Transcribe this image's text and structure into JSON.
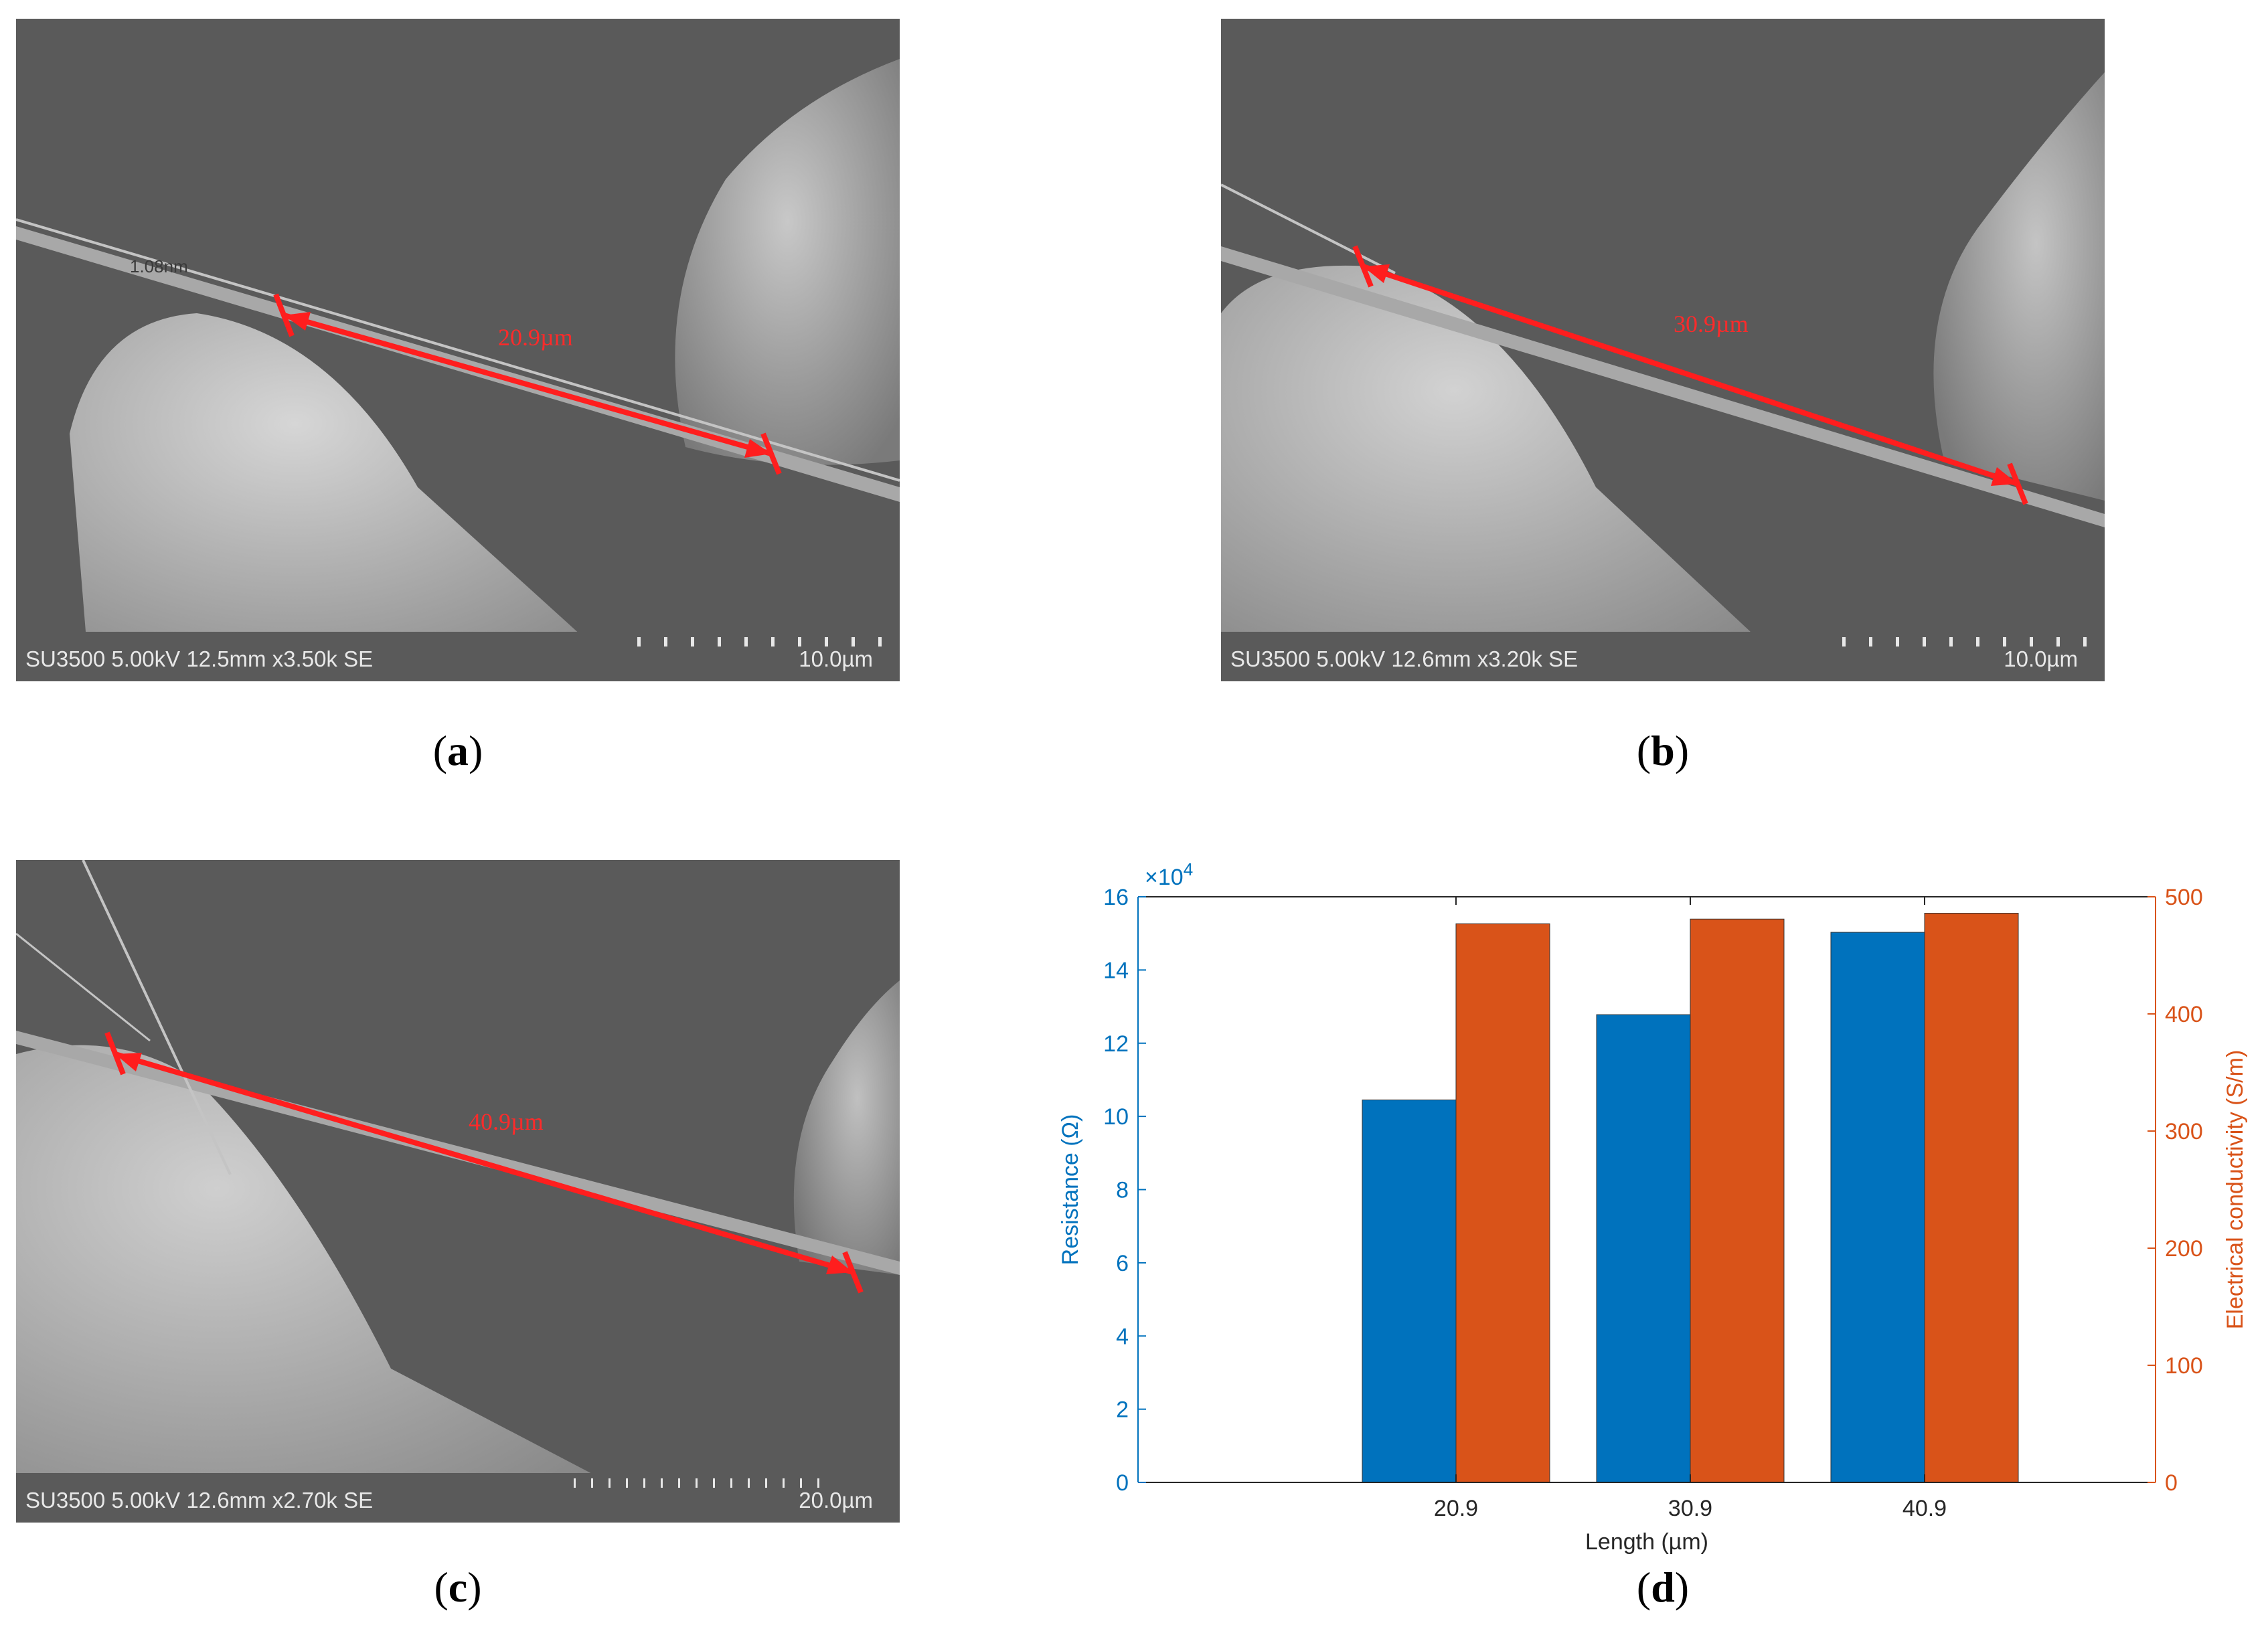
{
  "panels": [
    {
      "id": "a",
      "caption_letter": "a",
      "sem_info": "SU3500 5.00kV 12.5mm x3.50k SE",
      "scale_text": "10.0µm",
      "measurement": "20.9µm",
      "overlay_text": "1.08nm"
    },
    {
      "id": "b",
      "caption_letter": "b",
      "sem_info": "SU3500 5.00kV 12.6mm x3.20k SE",
      "scale_text": "10.0µm",
      "measurement": "30.9µm"
    },
    {
      "id": "c",
      "caption_letter": "c",
      "sem_info": "SU3500 5.00kV 12.6mm x2.70k SE",
      "scale_text": "20.0µm",
      "measurement": "40.9µm"
    }
  ],
  "chart_caption_letter": "d",
  "chart_data": {
    "type": "bar",
    "categories": [
      "20.9",
      "30.9",
      "40.9"
    ],
    "xlabel": "Length (µm)",
    "series": [
      {
        "values": [
          104500,
          127800,
          150300
        ],
        "axis": "left",
        "color": "#0072bd"
      },
      {
        "values": [
          477,
          481,
          486
        ],
        "axis": "right",
        "color": "#d95319"
      }
    ],
    "left_axis": {
      "label": "Resistance (Ω)",
      "ylim": [
        0,
        160000
      ],
      "ticks": [
        "0",
        "2",
        "4",
        "6",
        "8",
        "10",
        "12",
        "14",
        "16"
      ],
      "exponent": "×10",
      "exponent_power": "4"
    },
    "right_axis": {
      "label": "Electrical conductivity (S/m)",
      "ylim": [
        0,
        500
      ],
      "ticks": [
        "0",
        "100",
        "200",
        "300",
        "400",
        "500"
      ]
    },
    "grid": false
  }
}
